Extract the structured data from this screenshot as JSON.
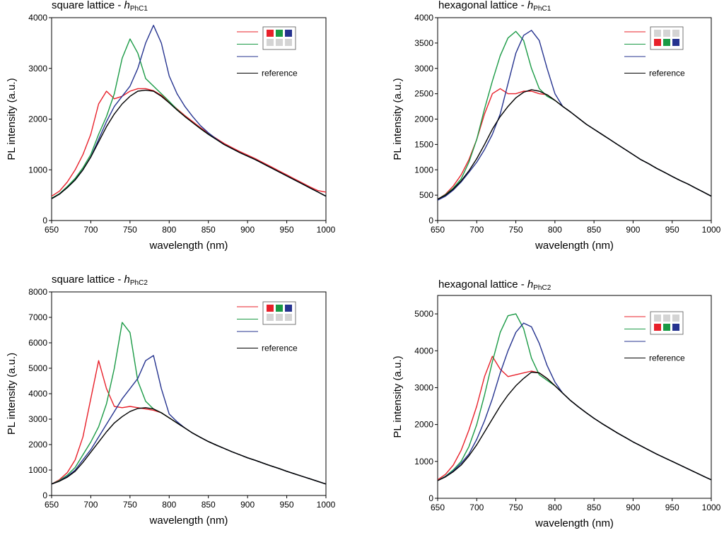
{
  "chart_data": [
    {
      "type": "line",
      "title": "square lattice - ",
      "title_symbol": "h",
      "title_subscript": "PhC1",
      "xlabel": "wavelength (nm)",
      "ylabel": "PL intensity (a.u.)",
      "x": [
        650,
        660,
        670,
        680,
        690,
        700,
        710,
        720,
        730,
        740,
        750,
        760,
        770,
        780,
        790,
        800,
        810,
        820,
        830,
        840,
        850,
        860,
        870,
        880,
        890,
        900,
        910,
        920,
        930,
        940,
        950,
        960,
        970,
        980,
        990,
        1000
      ],
      "xlim": [
        650,
        1000
      ],
      "xticks": [
        650,
        700,
        750,
        800,
        850,
        900,
        950,
        1000
      ],
      "ylim": [
        0,
        4000
      ],
      "yticks": [
        0,
        1000,
        2000,
        3000,
        4000
      ],
      "legend_icon_row": 0,
      "series": [
        {
          "name": null,
          "color": "#e8202a",
          "values": [
            480,
            580,
            760,
            1000,
            1300,
            1700,
            2300,
            2550,
            2400,
            2450,
            2550,
            2600,
            2600,
            2560,
            2470,
            2340,
            2200,
            2070,
            1950,
            1830,
            1720,
            1620,
            1520,
            1440,
            1360,
            1290,
            1220,
            1140,
            1060,
            980,
            900,
            820,
            740,
            660,
            590,
            560
          ]
        },
        {
          "name": null,
          "color": "#1a9a45",
          "values": [
            440,
            530,
            670,
            830,
            1040,
            1300,
            1700,
            2050,
            2500,
            3200,
            3580,
            3300,
            2800,
            2650,
            2500,
            2350,
            2190,
            2050,
            1930,
            1810,
            1700,
            1600,
            1500,
            1420,
            1340,
            1270,
            1200,
            1120,
            1040,
            960,
            880,
            800,
            720,
            640,
            560,
            480
          ]
        },
        {
          "name": null,
          "color": "#25338f",
          "values": [
            430,
            520,
            650,
            800,
            1000,
            1250,
            1600,
            1950,
            2250,
            2450,
            2650,
            3000,
            3500,
            3850,
            3500,
            2850,
            2500,
            2250,
            2050,
            1870,
            1730,
            1610,
            1500,
            1420,
            1340,
            1270,
            1200,
            1120,
            1040,
            960,
            880,
            800,
            720,
            640,
            560,
            480
          ]
        },
        {
          "name": "reference",
          "color": "#000000",
          "values": [
            430,
            520,
            650,
            800,
            1000,
            1250,
            1550,
            1850,
            2100,
            2300,
            2450,
            2550,
            2570,
            2550,
            2450,
            2320,
            2180,
            2050,
            1930,
            1810,
            1700,
            1600,
            1500,
            1420,
            1340,
            1270,
            1200,
            1120,
            1040,
            960,
            880,
            800,
            720,
            640,
            560,
            480
          ]
        }
      ]
    },
    {
      "type": "line",
      "title": "hexagonal lattice - ",
      "title_symbol": "h",
      "title_subscript": "PhC1",
      "xlabel": "wavelength (nm)",
      "ylabel": "PL intensity (a.u.)",
      "x": [
        650,
        660,
        670,
        680,
        690,
        700,
        710,
        720,
        730,
        740,
        750,
        760,
        770,
        780,
        790,
        800,
        810,
        820,
        830,
        840,
        850,
        860,
        870,
        880,
        890,
        900,
        910,
        920,
        930,
        940,
        950,
        960,
        970,
        980,
        990,
        1000
      ],
      "xlim": [
        650,
        1000
      ],
      "xticks": [
        650,
        700,
        750,
        800,
        850,
        900,
        950,
        1000
      ],
      "ylim": [
        0,
        4000
      ],
      "yticks": [
        0,
        500,
        1000,
        1500,
        2000,
        2500,
        3000,
        3500,
        4000
      ],
      "legend_icon_row": 1,
      "series": [
        {
          "name": null,
          "color": "#e8202a",
          "values": [
            420,
            520,
            680,
            900,
            1200,
            1600,
            2100,
            2500,
            2600,
            2500,
            2500,
            2550,
            2550,
            2500,
            2480,
            2370,
            2250,
            2140,
            2020,
            1900,
            1800,
            1700,
            1600,
            1500,
            1400,
            1300,
            1200,
            1120,
            1030,
            950,
            870,
            790,
            720,
            640,
            560,
            480
          ]
        },
        {
          "name": null,
          "color": "#1a9a45",
          "values": [
            420,
            510,
            640,
            820,
            1150,
            1600,
            2200,
            2750,
            3250,
            3600,
            3730,
            3550,
            3000,
            2600,
            2450,
            2370,
            2250,
            2140,
            2020,
            1900,
            1800,
            1700,
            1600,
            1500,
            1400,
            1300,
            1200,
            1120,
            1030,
            950,
            870,
            790,
            720,
            640,
            560,
            480
          ]
        },
        {
          "name": null,
          "color": "#25338f",
          "values": [
            400,
            480,
            600,
            760,
            950,
            1150,
            1400,
            1700,
            2100,
            2700,
            3300,
            3650,
            3750,
            3550,
            3000,
            2500,
            2250,
            2140,
            2020,
            1900,
            1800,
            1700,
            1600,
            1500,
            1400,
            1300,
            1200,
            1120,
            1030,
            950,
            870,
            790,
            720,
            640,
            560,
            480
          ]
        },
        {
          "name": "reference",
          "color": "#000000",
          "values": [
            420,
            500,
            620,
            780,
            980,
            1220,
            1500,
            1800,
            2050,
            2250,
            2420,
            2530,
            2580,
            2550,
            2480,
            2370,
            2250,
            2140,
            2020,
            1900,
            1800,
            1700,
            1600,
            1500,
            1400,
            1300,
            1200,
            1120,
            1030,
            950,
            870,
            790,
            720,
            640,
            560,
            480
          ]
        }
      ]
    },
    {
      "type": "line",
      "title": "square lattice - ",
      "title_symbol": "h",
      "title_subscript": "PhC2",
      "xlabel": "wavelength (nm)",
      "ylabel": "PL intensity (a.u.)",
      "x": [
        650,
        660,
        670,
        680,
        690,
        700,
        710,
        720,
        730,
        740,
        750,
        760,
        770,
        780,
        790,
        800,
        810,
        820,
        830,
        840,
        850,
        860,
        870,
        880,
        890,
        900,
        910,
        920,
        930,
        940,
        950,
        960,
        970,
        980,
        990,
        1000
      ],
      "xlim": [
        650,
        1000
      ],
      "xticks": [
        650,
        700,
        750,
        800,
        850,
        900,
        950,
        1000
      ],
      "ylim": [
        0,
        8000
      ],
      "yticks": [
        0,
        1000,
        2000,
        3000,
        4000,
        5000,
        6000,
        7000,
        8000
      ],
      "legend_icon_row": 0,
      "series": [
        {
          "name": null,
          "color": "#e8202a",
          "values": [
            450,
            620,
            900,
            1400,
            2300,
            3800,
            5300,
            4200,
            3500,
            3450,
            3500,
            3450,
            3400,
            3350,
            3250,
            3050,
            2850,
            2650,
            2450,
            2280,
            2120,
            1980,
            1850,
            1720,
            1600,
            1480,
            1380,
            1270,
            1160,
            1060,
            950,
            850,
            750,
            650,
            550,
            450
          ]
        },
        {
          "name": null,
          "color": "#1a9a45",
          "values": [
            450,
            590,
            800,
            1100,
            1600,
            2100,
            2700,
            3600,
            5000,
            6800,
            6400,
            4500,
            3700,
            3400,
            3250,
            3050,
            2850,
            2650,
            2450,
            2280,
            2120,
            1980,
            1850,
            1720,
            1600,
            1480,
            1380,
            1270,
            1160,
            1060,
            950,
            850,
            750,
            650,
            550,
            450
          ]
        },
        {
          "name": null,
          "color": "#25338f",
          "values": [
            450,
            570,
            750,
            1000,
            1400,
            1800,
            2300,
            2800,
            3300,
            3800,
            4200,
            4600,
            5300,
            5500,
            4200,
            3200,
            2900,
            2650,
            2450,
            2280,
            2120,
            1980,
            1850,
            1720,
            1600,
            1480,
            1380,
            1270,
            1160,
            1060,
            950,
            850,
            750,
            650,
            550,
            450
          ]
        },
        {
          "name": "reference",
          "color": "#000000",
          "values": [
            450,
            560,
            720,
            950,
            1300,
            1700,
            2100,
            2500,
            2850,
            3100,
            3300,
            3420,
            3450,
            3400,
            3250,
            3050,
            2850,
            2650,
            2450,
            2280,
            2120,
            1980,
            1850,
            1720,
            1600,
            1480,
            1380,
            1270,
            1160,
            1060,
            950,
            850,
            750,
            650,
            550,
            450
          ]
        }
      ]
    },
    {
      "type": "line",
      "title": "hexagonal lattice - ",
      "title_symbol": "h",
      "title_subscript": "PhC2",
      "xlabel": "wavelength (nm)",
      "ylabel": "PL intensity (a.u.)",
      "x": [
        650,
        660,
        670,
        680,
        690,
        700,
        710,
        720,
        730,
        740,
        750,
        760,
        770,
        780,
        790,
        800,
        810,
        820,
        830,
        840,
        850,
        860,
        870,
        880,
        890,
        900,
        910,
        920,
        930,
        940,
        950,
        960,
        970,
        980,
        990,
        1000
      ],
      "xlim": [
        650,
        1000
      ],
      "xticks": [
        650,
        700,
        750,
        800,
        850,
        900,
        950,
        1000
      ],
      "ylim": [
        0,
        5500
      ],
      "yticks": [
        0,
        1000,
        2000,
        3000,
        4000,
        5000
      ],
      "legend_icon_row": 1,
      "series": [
        {
          "name": null,
          "color": "#e8202a",
          "values": [
            500,
            650,
            900,
            1300,
            1850,
            2500,
            3300,
            3850,
            3500,
            3300,
            3350,
            3400,
            3450,
            3400,
            3250,
            3050,
            2850,
            2650,
            2480,
            2320,
            2170,
            2030,
            1900,
            1770,
            1650,
            1530,
            1420,
            1310,
            1200,
            1100,
            1000,
            900,
            800,
            700,
            600,
            500
          ]
        },
        {
          "name": null,
          "color": "#1a9a45",
          "values": [
            480,
            600,
            770,
            1000,
            1400,
            2000,
            2800,
            3700,
            4500,
            4950,
            5000,
            4600,
            3800,
            3350,
            3200,
            3050,
            2850,
            2650,
            2480,
            2320,
            2170,
            2030,
            1900,
            1770,
            1650,
            1530,
            1420,
            1310,
            1200,
            1100,
            1000,
            900,
            800,
            700,
            600,
            500
          ]
        },
        {
          "name": null,
          "color": "#25338f",
          "values": [
            480,
            590,
            740,
            950,
            1200,
            1600,
            2100,
            2700,
            3400,
            4000,
            4500,
            4750,
            4650,
            4200,
            3600,
            3150,
            2850,
            2650,
            2480,
            2320,
            2170,
            2030,
            1900,
            1770,
            1650,
            1530,
            1420,
            1310,
            1200,
            1100,
            1000,
            900,
            800,
            700,
            600,
            500
          ]
        },
        {
          "name": "reference",
          "color": "#000000",
          "values": [
            480,
            580,
            720,
            900,
            1150,
            1450,
            1800,
            2150,
            2500,
            2800,
            3050,
            3250,
            3420,
            3400,
            3250,
            3050,
            2850,
            2650,
            2480,
            2320,
            2170,
            2030,
            1900,
            1770,
            1650,
            1530,
            1420,
            1310,
            1200,
            1100,
            1000,
            900,
            800,
            700,
            600,
            500
          ]
        }
      ]
    }
  ]
}
